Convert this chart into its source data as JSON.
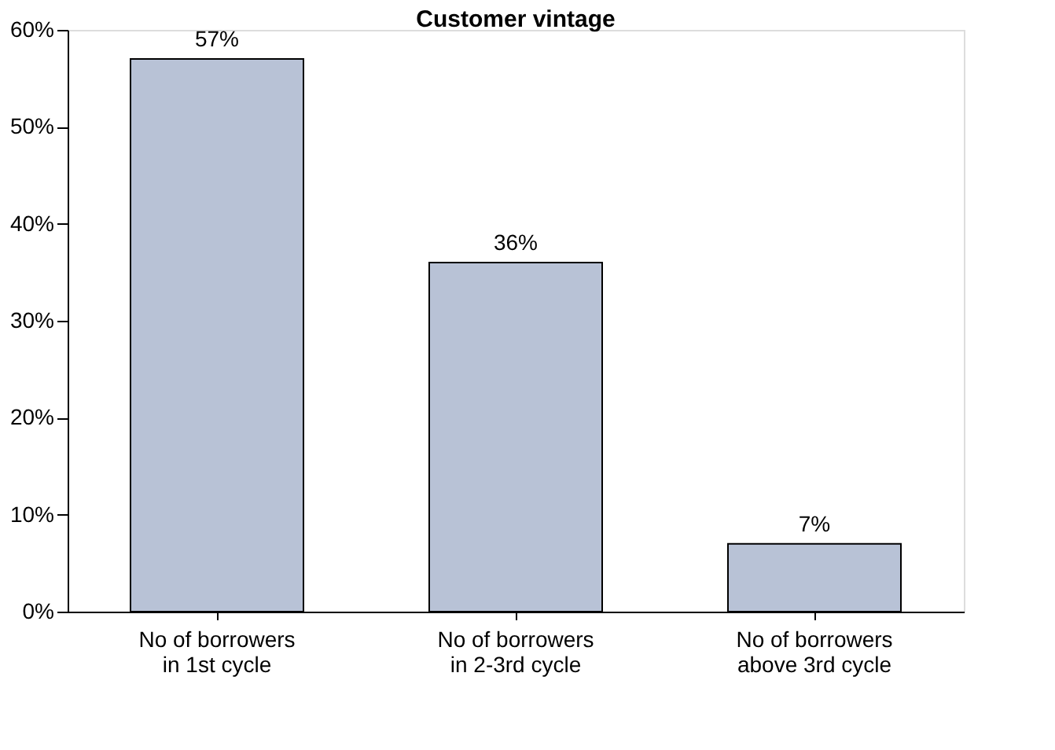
{
  "chart_data": {
    "type": "bar",
    "title": "Customer vintage",
    "categories": [
      "No of borrowers\nin 1st cycle",
      "No of borrowers\nin 2-3rd cycle",
      "No of borrowers\nabove 3rd cycle"
    ],
    "values": [
      57,
      36,
      7
    ],
    "color": "#b8c2d6",
    "value_labels": [
      "57%",
      "36%",
      "7%"
    ],
    "ylim": [
      0,
      60
    ],
    "yticks": [
      {
        "value": 0,
        "label": "0%"
      },
      {
        "value": 10,
        "label": "10%"
      },
      {
        "value": 20,
        "label": "20%"
      },
      {
        "value": 30,
        "label": "30%"
      },
      {
        "value": 40,
        "label": "40%"
      },
      {
        "value": 50,
        "label": "50%"
      },
      {
        "value": 60,
        "label": "60%"
      }
    ],
    "grid": false
  }
}
